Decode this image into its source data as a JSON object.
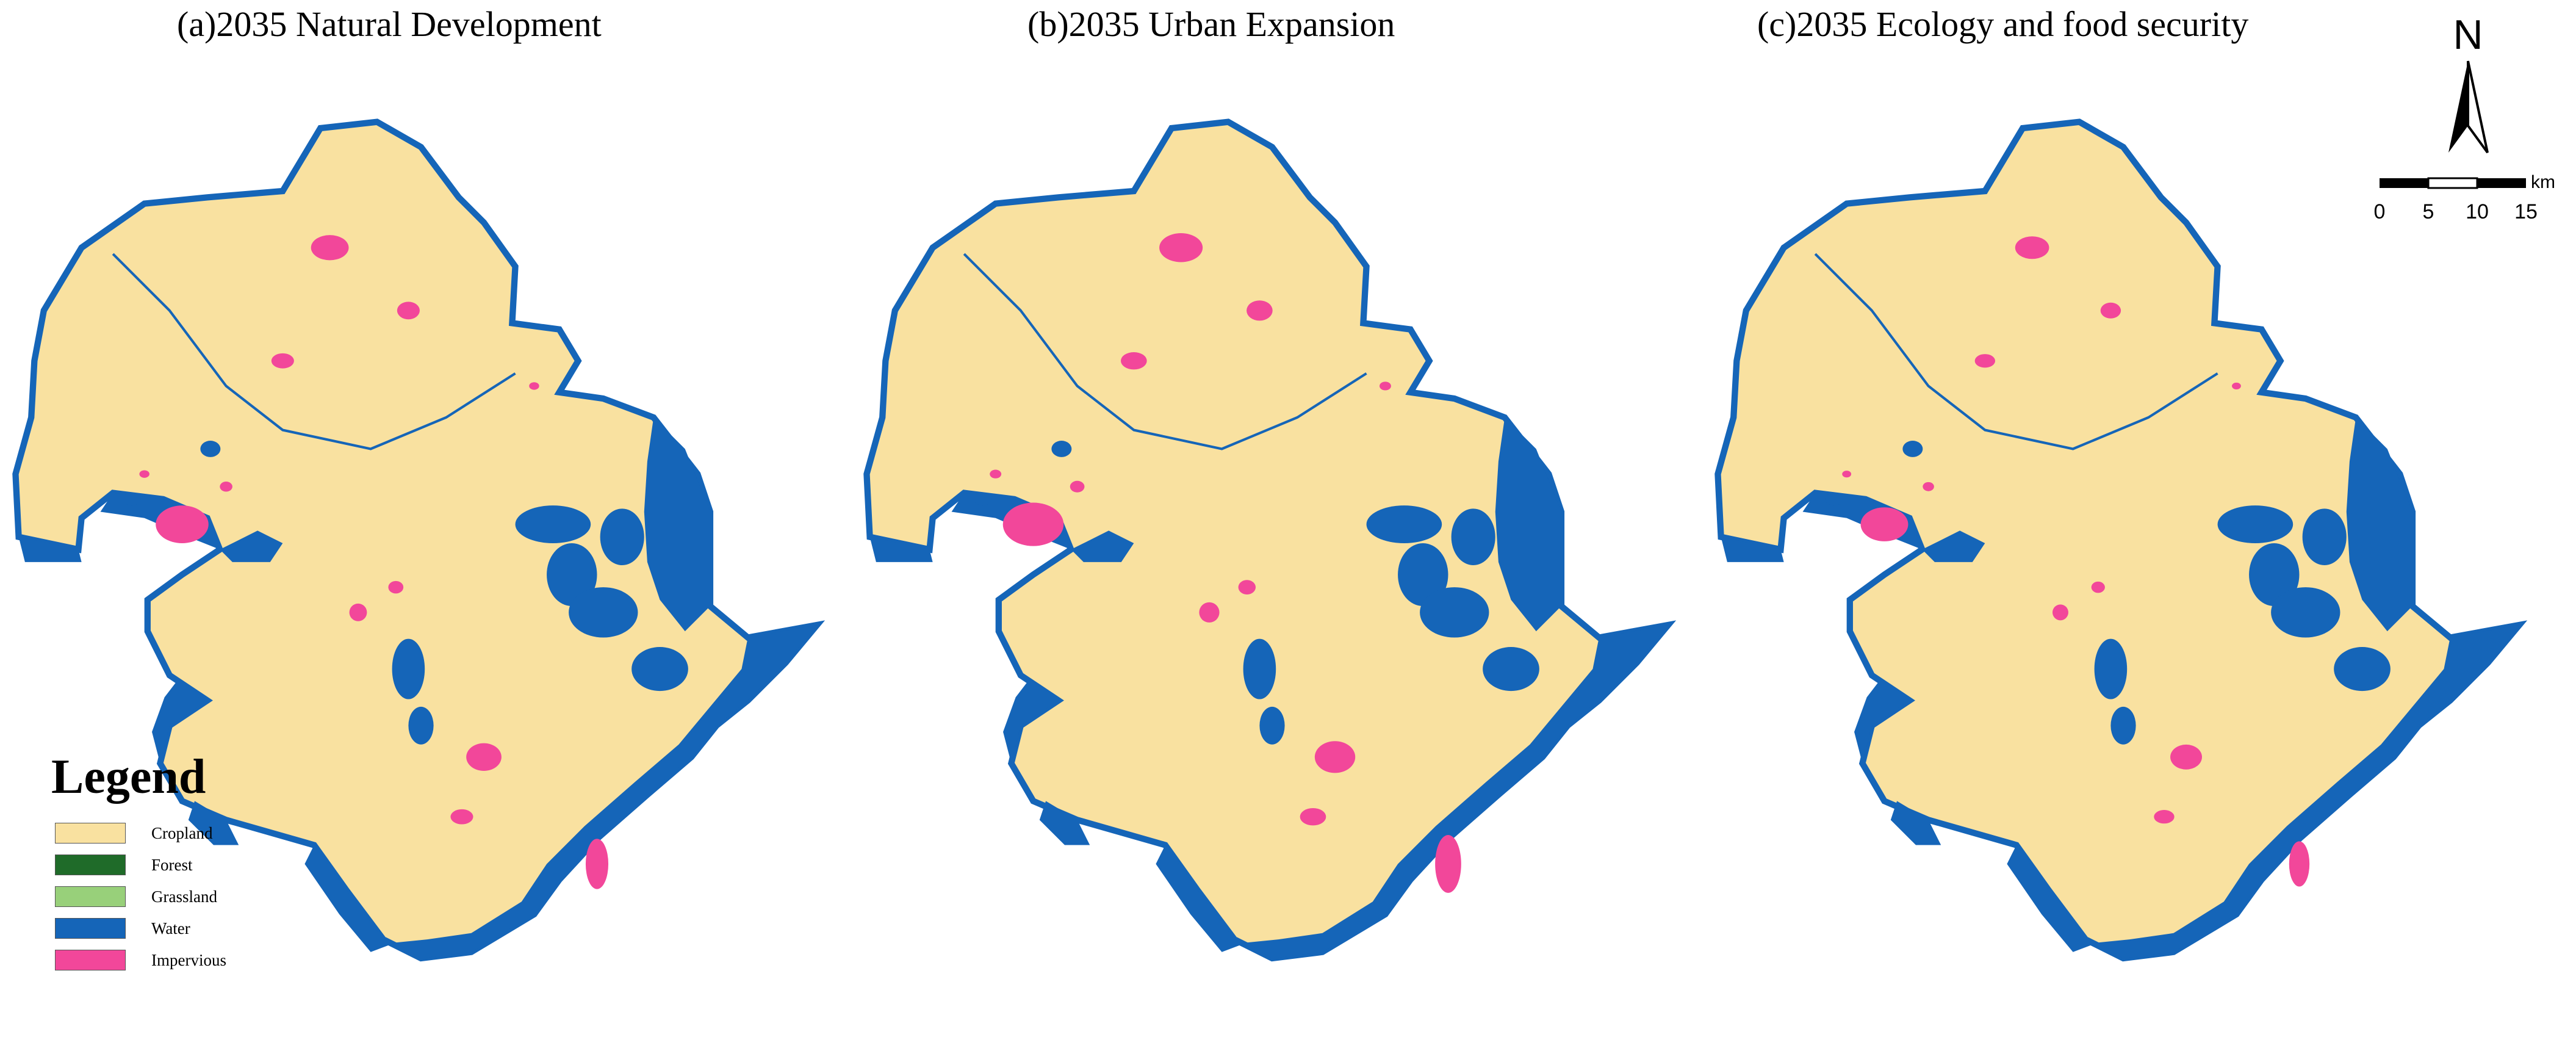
{
  "titles": {
    "a": "(a)2035 Natural Development",
    "b": "(b)2035 Urban Expansion",
    "c": "(c)2035 Ecology and food security"
  },
  "legend": {
    "title": "Legend",
    "items": [
      {
        "label": "Cropland",
        "color": "#f9e1a0"
      },
      {
        "label": "Forest",
        "color": "#1f6b29"
      },
      {
        "label": "Grassland",
        "color": "#98d07a"
      },
      {
        "label": "Water",
        "color": "#1565b8"
      },
      {
        "label": "Impervious",
        "color": "#f2479a"
      }
    ]
  },
  "north_arrow": {
    "label": "N"
  },
  "scale_bar": {
    "unit": "km",
    "ticks": [
      "0",
      "5",
      "10",
      "15"
    ]
  },
  "colors": {
    "cropland": "#f9e1a0",
    "water": "#1565b8",
    "impervious": "#f2479a",
    "background": "#ffffff"
  }
}
